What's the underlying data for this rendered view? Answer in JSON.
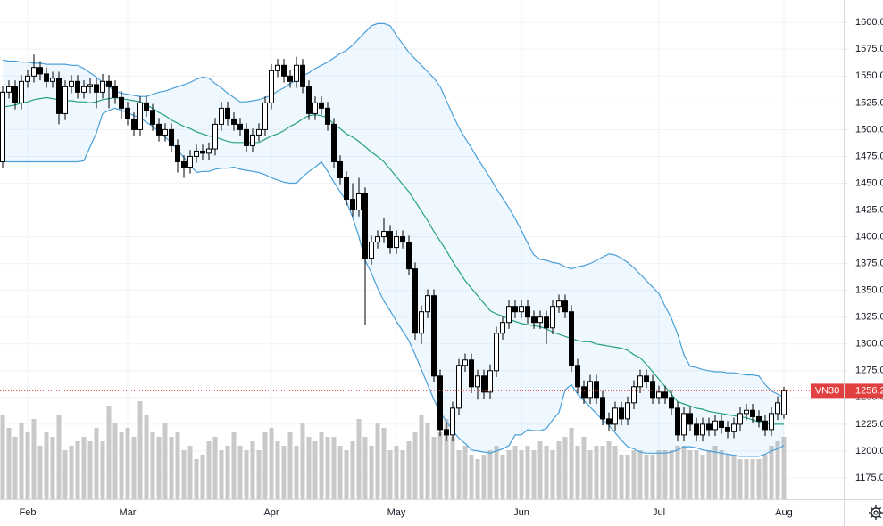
{
  "chart_data": {
    "type": "candlestick",
    "categories": [
      null,
      null,
      null,
      null,
      "Feb",
      null,
      null,
      null,
      null,
      null,
      null,
      null,
      null,
      null,
      null,
      null,
      null,
      null,
      null,
      null,
      "Mar",
      null,
      null,
      null,
      null,
      null,
      null,
      null,
      null,
      null,
      null,
      null,
      null,
      null,
      null,
      null,
      null,
      null,
      null,
      null,
      null,
      null,
      null,
      "Apr",
      null,
      null,
      null,
      null,
      null,
      null,
      null,
      null,
      null,
      null,
      null,
      null,
      null,
      null,
      null,
      null,
      null,
      null,
      null,
      "May",
      null,
      null,
      null,
      null,
      null,
      null,
      null,
      null,
      null,
      null,
      null,
      null,
      null,
      null,
      null,
      null,
      null,
      null,
      null,
      "Jun",
      null,
      null,
      null,
      null,
      null,
      null,
      null,
      null,
      null,
      null,
      null,
      null,
      null,
      null,
      null,
      null,
      null,
      null,
      null,
      null,
      null,
      "Jul",
      null,
      null,
      null,
      null,
      null,
      null,
      null,
      null,
      null,
      null,
      null,
      null,
      null,
      null,
      null,
      null,
      null,
      null,
      null,
      "Aug"
    ],
    "open": [
      1470,
      1535,
      1540,
      1525,
      1545,
      1550,
      1558,
      1552,
      1545,
      1548,
      1515,
      1540,
      1545,
      1535,
      1540,
      1542,
      1535,
      1545,
      1540,
      1530,
      1520,
      1510,
      1500,
      1525,
      1518,
      1505,
      1495,
      1500,
      1485,
      1470,
      1465,
      1475,
      1480,
      1478,
      1482,
      1505,
      1520,
      1510,
      1505,
      1500,
      1485,
      1495,
      1500,
      1525,
      1555,
      1560,
      1550,
      1545,
      1560,
      1540,
      1515,
      1525,
      1520,
      1505,
      1470,
      1455,
      1435,
      1425,
      1440,
      1380,
      1395,
      1400,
      1405,
      1390,
      1400,
      1395,
      1370,
      1310,
      1330,
      1345,
      1270,
      1220,
      1215,
      1240,
      1280,
      1285,
      1260,
      1270,
      1255,
      1275,
      1310,
      1320,
      1335,
      1330,
      1335,
      1325,
      1320,
      1325,
      1315,
      1335,
      1340,
      1330,
      1280,
      1260,
      1250,
      1265,
      1250,
      1230,
      1225,
      1240,
      1230,
      1245,
      1260,
      1270,
      1265,
      1250,
      1255,
      1250,
      1240,
      1215,
      1235,
      1225,
      1215,
      1225,
      1220,
      1228,
      1222,
      1218,
      1225,
      1235,
      1238,
      1232,
      1228,
      1220,
      1235,
      1234
    ],
    "high": [
      1541,
      1546,
      1546,
      1551,
      1556,
      1570,
      1564,
      1558,
      1554,
      1554,
      1546,
      1551,
      1551,
      1546,
      1548,
      1548,
      1552,
      1551,
      1546,
      1536,
      1526,
      1516,
      1531,
      1531,
      1524,
      1511,
      1506,
      1506,
      1491,
      1476,
      1481,
      1486,
      1486,
      1488,
      1511,
      1526,
      1526,
      1516,
      1511,
      1506,
      1501,
      1506,
      1531,
      1561,
      1566,
      1566,
      1556,
      1568,
      1566,
      1546,
      1531,
      1531,
      1526,
      1511,
      1476,
      1461,
      1450,
      1455,
      1446,
      1401,
      1406,
      1418,
      1411,
      1406,
      1406,
      1401,
      1376,
      1336,
      1351,
      1351,
      1276,
      1226,
      1246,
      1286,
      1291,
      1291,
      1276,
      1276,
      1281,
      1316,
      1326,
      1341,
      1341,
      1341,
      1341,
      1331,
      1331,
      1331,
      1341,
      1346,
      1346,
      1336,
      1286,
      1266,
      1271,
      1271,
      1256,
      1236,
      1246,
      1246,
      1251,
      1266,
      1276,
      1276,
      1271,
      1261,
      1261,
      1256,
      1246,
      1241,
      1241,
      1231,
      1231,
      1231,
      1234,
      1234,
      1228,
      1231,
      1241,
      1244,
      1244,
      1238,
      1234,
      1241,
      1251,
      1260
    ],
    "low": [
      1464,
      1529,
      1519,
      1519,
      1539,
      1544,
      1546,
      1539,
      1539,
      1505,
      1509,
      1534,
      1529,
      1529,
      1534,
      1520,
      1529,
      1520,
      1524,
      1510,
      1504,
      1494,
      1494,
      1512,
      1499,
      1489,
      1489,
      1479,
      1460,
      1455,
      1459,
      1469,
      1472,
      1472,
      1476,
      1499,
      1504,
      1499,
      1494,
      1479,
      1479,
      1489,
      1494,
      1519,
      1549,
      1544,
      1539,
      1539,
      1534,
      1509,
      1509,
      1514,
      1499,
      1464,
      1449,
      1429,
      1419,
      1419,
      1318,
      1374,
      1389,
      1394,
      1384,
      1384,
      1389,
      1364,
      1304,
      1300,
      1324,
      1264,
      1214,
      1209,
      1209,
      1234,
      1274,
      1254,
      1248,
      1249,
      1249,
      1269,
      1304,
      1314,
      1324,
      1324,
      1319,
      1314,
      1314,
      1300,
      1309,
      1329,
      1324,
      1274,
      1254,
      1244,
      1244,
      1244,
      1224,
      1219,
      1219,
      1224,
      1224,
      1239,
      1254,
      1259,
      1244,
      1244,
      1244,
      1234,
      1209,
      1209,
      1219,
      1209,
      1209,
      1214,
      1214,
      1216,
      1212,
      1212,
      1219,
      1229,
      1226,
      1222,
      1214,
      1214,
      1229,
      1230
    ],
    "close": [
      1535,
      1540,
      1525,
      1545,
      1550,
      1558,
      1552,
      1545,
      1548,
      1515,
      1540,
      1545,
      1535,
      1540,
      1542,
      1535,
      1545,
      1540,
      1530,
      1520,
      1510,
      1500,
      1525,
      1518,
      1505,
      1495,
      1500,
      1485,
      1470,
      1465,
      1475,
      1480,
      1478,
      1482,
      1505,
      1520,
      1510,
      1505,
      1500,
      1485,
      1495,
      1500,
      1525,
      1555,
      1560,
      1550,
      1545,
      1560,
      1540,
      1515,
      1525,
      1520,
      1505,
      1470,
      1455,
      1435,
      1425,
      1440,
      1380,
      1395,
      1400,
      1405,
      1390,
      1400,
      1395,
      1370,
      1310,
      1330,
      1345,
      1270,
      1220,
      1215,
      1240,
      1280,
      1285,
      1260,
      1270,
      1255,
      1275,
      1310,
      1320,
      1335,
      1330,
      1335,
      1325,
      1320,
      1325,
      1315,
      1335,
      1340,
      1330,
      1280,
      1260,
      1250,
      1265,
      1250,
      1230,
      1225,
      1240,
      1230,
      1245,
      1260,
      1270,
      1265,
      1250,
      1255,
      1250,
      1240,
      1215,
      1235,
      1225,
      1215,
      1225,
      1220,
      1228,
      1222,
      1218,
      1225,
      1235,
      1238,
      1232,
      1228,
      1220,
      1235,
      1245,
      1256.2
    ],
    "volume": [
      95,
      80,
      70,
      85,
      75,
      90,
      60,
      75,
      70,
      95,
      55,
      60,
      65,
      70,
      65,
      80,
      65,
      105,
      85,
      75,
      80,
      70,
      110,
      95,
      75,
      70,
      85,
      70,
      75,
      55,
      60,
      45,
      50,
      65,
      70,
      55,
      60,
      75,
      60,
      55,
      65,
      55,
      75,
      80,
      65,
      60,
      75,
      60,
      85,
      70,
      65,
      75,
      70,
      70,
      60,
      55,
      65,
      90,
      70,
      60,
      85,
      80,
      55,
      60,
      55,
      65,
      75,
      95,
      85,
      70,
      75,
      90,
      70,
      55,
      60,
      50,
      45,
      50,
      55,
      60,
      50,
      55,
      60,
      55,
      60,
      55,
      65,
      60,
      55,
      65,
      70,
      80,
      60,
      70,
      55,
      60,
      60,
      65,
      60,
      50,
      50,
      55,
      55,
      50,
      50,
      55,
      55,
      55,
      60,
      60,
      55,
      55,
      50,
      55,
      60,
      55,
      50,
      50,
      45,
      45,
      45,
      45,
      50,
      60,
      65,
      70
    ],
    "bollinger": {
      "upper": [
        1565,
        1564,
        1564,
        1563,
        1563,
        1562,
        1562,
        1561,
        1561,
        1561,
        1561,
        1560,
        1560,
        1557,
        1553,
        1549,
        1544,
        1540,
        1536,
        1534,
        1533,
        1532,
        1531,
        1531,
        1533,
        1535,
        1536,
        1538,
        1540,
        1542,
        1544,
        1547,
        1549,
        1548,
        1543,
        1539,
        1534,
        1530,
        1526,
        1526,
        1527,
        1528,
        1530,
        1532,
        1536,
        1539,
        1543,
        1546,
        1550,
        1553,
        1557,
        1560,
        1563,
        1567,
        1571,
        1574,
        1579,
        1585,
        1591,
        1597,
        1599,
        1599,
        1597,
        1588,
        1580,
        1572,
        1566,
        1560,
        1554,
        1548,
        1540,
        1527,
        1514,
        1502,
        1492,
        1483,
        1473,
        1464,
        1455,
        1445,
        1436,
        1427,
        1417,
        1406,
        1394,
        1383,
        1379,
        1378,
        1376,
        1375,
        1372,
        1370,
        1372,
        1373,
        1375,
        1378,
        1381,
        1384,
        1383,
        1380,
        1376,
        1371,
        1365,
        1359,
        1353,
        1347,
        1335,
        1324,
        1309,
        1290,
        1279,
        1278,
        1276,
        1275,
        1274,
        1274,
        1273,
        1273,
        1272,
        1271,
        1271,
        1270,
        1262,
        1256,
        1253,
        1250
      ],
      "middle": [
        1521,
        1522,
        1523,
        1525,
        1526,
        1528,
        1529,
        1530,
        1529,
        1528,
        1527,
        1527,
        1526,
        1526,
        1525,
        1526,
        1528,
        1529,
        1530,
        1529,
        1528,
        1527,
        1526,
        1523,
        1520,
        1516,
        1513,
        1509,
        1506,
        1503,
        1501,
        1498,
        1496,
        1494,
        1493,
        1491,
        1489,
        1488,
        1488,
        1488,
        1488,
        1488,
        1491,
        1494,
        1496,
        1499,
        1503,
        1506,
        1510,
        1513,
        1514,
        1513,
        1511,
        1505,
        1501,
        1496,
        1493,
        1489,
        1484,
        1479,
        1475,
        1470,
        1463,
        1456,
        1449,
        1442,
        1433,
        1424,
        1415,
        1405,
        1396,
        1387,
        1377,
        1368,
        1359,
        1352,
        1345,
        1338,
        1331,
        1328,
        1326,
        1323,
        1321,
        1319,
        1318,
        1317,
        1316,
        1314,
        1311,
        1309,
        1307,
        1305,
        1303,
        1302,
        1302,
        1300,
        1299,
        1298,
        1297,
        1296,
        1294,
        1290,
        1287,
        1281,
        1274,
        1267,
        1260,
        1253,
        1246,
        1244,
        1242,
        1240,
        1239,
        1237,
        1236,
        1235,
        1234,
        1233,
        1232,
        1231,
        1229,
        1227,
        1226,
        1225,
        1225,
        1225
      ],
      "lower": [
        1470,
        1470,
        1470,
        1470,
        1470,
        1470,
        1470,
        1470,
        1470,
        1470,
        1470,
        1470,
        1470,
        1471,
        1484,
        1497,
        1515,
        1518,
        1520,
        1518,
        1516,
        1513,
        1511,
        1507,
        1503,
        1498,
        1493,
        1488,
        1481,
        1474,
        1467,
        1460,
        1461,
        1461,
        1463,
        1464,
        1464,
        1465,
        1463,
        1462,
        1461,
        1460,
        1458,
        1455,
        1453,
        1451,
        1450,
        1450,
        1456,
        1461,
        1465,
        1470,
        1461,
        1451,
        1442,
        1433,
        1418,
        1400,
        1378,
        1366,
        1352,
        1340,
        1331,
        1321,
        1312,
        1303,
        1290,
        1276,
        1262,
        1248,
        1236,
        1228,
        1219,
        1212,
        1207,
        1201,
        1200,
        1199,
        1198,
        1200,
        1202,
        1205,
        1215,
        1215,
        1220,
        1219,
        1219,
        1221,
        1229,
        1236,
        1257,
        1262,
        1253,
        1247,
        1241,
        1235,
        1229,
        1224,
        1217,
        1210,
        1204,
        1202,
        1199,
        1198,
        1198,
        1198,
        1198,
        1199,
        1201,
        1204,
        1204,
        1203,
        1201,
        1200,
        1199,
        1198,
        1197,
        1196,
        1195,
        1195,
        1195,
        1195,
        1197,
        1200,
        1202,
        1205
      ],
      "band_color": "#4a9fd8",
      "middle_color": "#26a17f",
      "fill": "rgba(33,150,243,0.07)"
    },
    "up_color": "#ffffff",
    "down_color": "#000000",
    "volume_color": "#c9c9c9",
    "last_label": "VN30",
    "last_color": "#e0403f",
    "ylim": [
      1155,
      1621
    ],
    "yticks": [
      {
        "value": 1175,
        "label": "1175.0"
      },
      {
        "value": 1200,
        "label": "1200.0"
      },
      {
        "value": 1225,
        "label": "1225.0"
      },
      {
        "value": 1250,
        "label": "1250.0"
      },
      {
        "value": 1275,
        "label": "1275.0"
      },
      {
        "value": 1300,
        "label": "1300.0"
      },
      {
        "value": 1325,
        "label": "1325.0"
      },
      {
        "value": 1350,
        "label": "1350.0"
      },
      {
        "value": 1375,
        "label": "1375.0"
      },
      {
        "value": 1400,
        "label": "1400.0"
      },
      {
        "value": 1425,
        "label": "1425.0"
      },
      {
        "value": 1450,
        "label": "1450.0"
      },
      {
        "value": 1475,
        "label": "1475.0"
      },
      {
        "value": 1500,
        "label": "1500.0"
      },
      {
        "value": 1525,
        "label": "1525.0"
      },
      {
        "value": 1550,
        "label": "1550.0"
      },
      {
        "value": 1575,
        "label": "1575.0"
      },
      {
        "value": 1600,
        "label": "1600.0"
      }
    ],
    "grid": true
  }
}
